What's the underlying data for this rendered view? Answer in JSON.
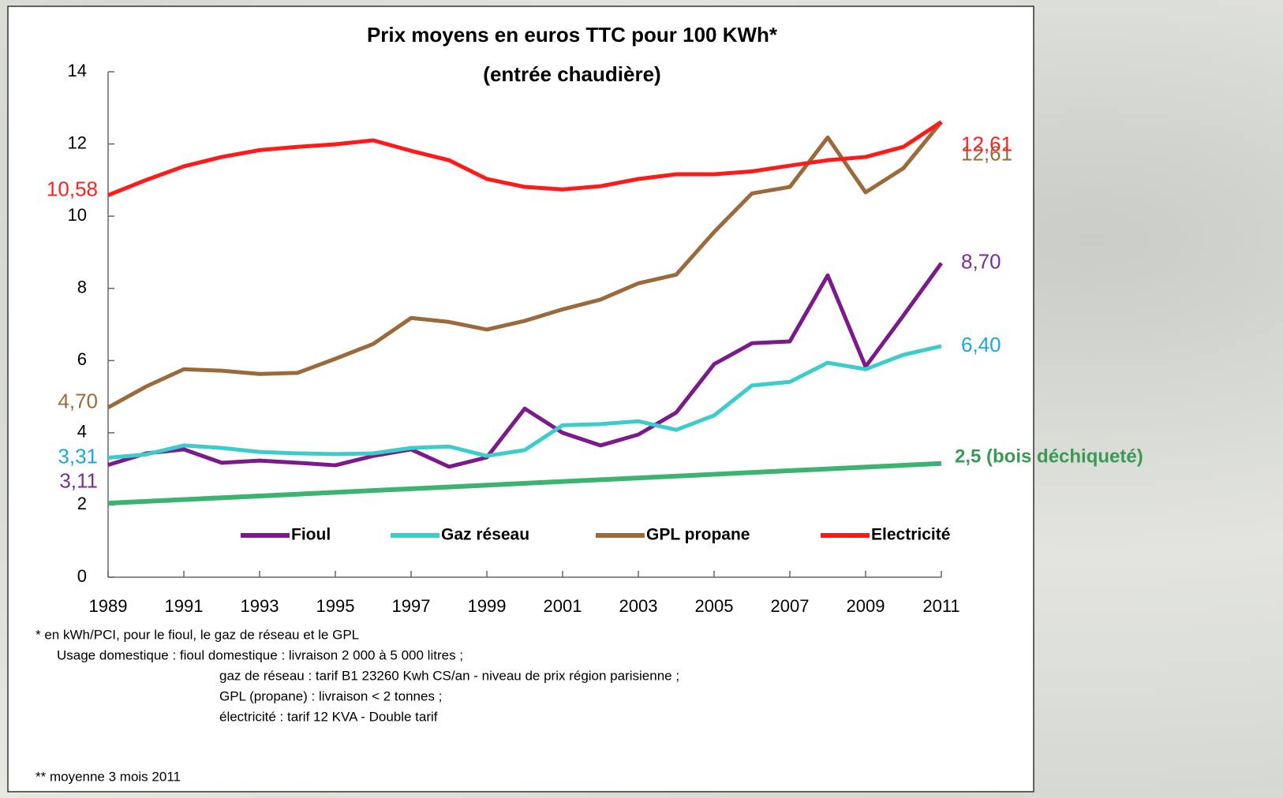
{
  "chart_data": {
    "type": "line",
    "title": "Prix moyens en euros TTC pour 100 KWh*",
    "subtitle": "(entrée chaudière)",
    "x": [
      1989,
      1990,
      1991,
      1992,
      1993,
      1994,
      1995,
      1996,
      1997,
      1998,
      1999,
      2000,
      2001,
      2002,
      2003,
      2004,
      2005,
      2006,
      2007,
      2008,
      2009,
      2010,
      2011
    ],
    "xlim": [
      1989,
      2011
    ],
    "xticks": [
      1989,
      1991,
      1993,
      1995,
      1997,
      1999,
      2001,
      2003,
      2005,
      2007,
      2009,
      2011
    ],
    "ylim": [
      0,
      14
    ],
    "yticks": [
      0,
      2,
      4,
      6,
      8,
      10,
      12,
      14
    ],
    "grid": false,
    "legend": "bottom",
    "series": [
      {
        "name": "Fioul",
        "color": "#7b1a8a",
        "label_color": "#7b2e9b",
        "values": [
          3.11,
          3.43,
          3.54,
          3.17,
          3.23,
          3.17,
          3.1,
          3.36,
          3.54,
          3.06,
          3.32,
          4.67,
          4.0,
          3.65,
          3.95,
          4.56,
          5.9,
          6.48,
          6.53,
          8.36,
          5.83,
          7.25,
          8.7
        ],
        "value_labels": [
          "3,11",
          null,
          null,
          null,
          null,
          null,
          null,
          null,
          null,
          null,
          null,
          null,
          null,
          null,
          null,
          null,
          null,
          null,
          null,
          null,
          null,
          null,
          "8,70"
        ]
      },
      {
        "name": "Gaz réseau",
        "color": "#3ccccc",
        "label_color": "#1aa8e0",
        "values": [
          3.31,
          3.4,
          3.65,
          3.58,
          3.47,
          3.43,
          3.41,
          3.43,
          3.58,
          3.62,
          3.36,
          3.52,
          4.21,
          4.24,
          4.32,
          4.08,
          4.48,
          5.31,
          5.41,
          5.94,
          5.76,
          6.16,
          6.4
        ],
        "value_labels": [
          "3,31",
          null,
          null,
          null,
          null,
          null,
          null,
          null,
          null,
          null,
          null,
          null,
          null,
          null,
          null,
          null,
          null,
          null,
          null,
          null,
          null,
          null,
          "6,40"
        ]
      },
      {
        "name": "GPL propane",
        "color": "#9b6a3a",
        "label_color": "#9b6a3a",
        "values": [
          4.7,
          5.28,
          5.76,
          5.72,
          5.63,
          5.66,
          6.05,
          6.46,
          7.18,
          7.07,
          6.86,
          7.1,
          7.42,
          7.69,
          8.14,
          8.38,
          9.56,
          10.63,
          10.81,
          12.18,
          10.66,
          11.33,
          12.61
        ],
        "value_labels": [
          "4,70",
          null,
          null,
          null,
          null,
          null,
          null,
          null,
          null,
          null,
          null,
          null,
          null,
          null,
          null,
          null,
          null,
          null,
          null,
          null,
          null,
          null,
          "12,61"
        ]
      },
      {
        "name": "Electricité",
        "color": "#ff1a1a",
        "label_color": "#ff2020",
        "values": [
          10.58,
          11.0,
          11.38,
          11.64,
          11.83,
          11.92,
          11.99,
          12.1,
          11.81,
          11.55,
          11.03,
          10.81,
          10.74,
          10.83,
          11.03,
          11.16,
          11.16,
          11.24,
          11.4,
          11.55,
          11.64,
          11.92,
          12.61
        ],
        "value_labels": [
          "10,58",
          null,
          null,
          null,
          null,
          null,
          null,
          null,
          null,
          null,
          null,
          null,
          null,
          null,
          null,
          null,
          null,
          null,
          null,
          null,
          null,
          null,
          "12,61"
        ]
      }
    ],
    "annotation": {
      "text": "2,5 (bois déchiqueté)",
      "color": "#3cb371",
      "label_color": "#3a9a55",
      "x": [
        1989,
        2011
      ],
      "values": [
        2.05,
        3.15
      ]
    },
    "notes": [
      "*   en kWh/PCI, pour le fioul, le gaz de réseau et le GPL",
      "Usage domestique : fioul domestique : livraison  2 000 à 5 000 litres ;",
      "gaz de réseau : tarif B1 23260 Kwh CS/an - niveau de prix région parisienne ;",
      "GPL (propane) : livraison <  2  tonnes ;",
      "électricité : tarif  12 KVA - Double tarif",
      "** moyenne  3 mois 2011"
    ]
  }
}
